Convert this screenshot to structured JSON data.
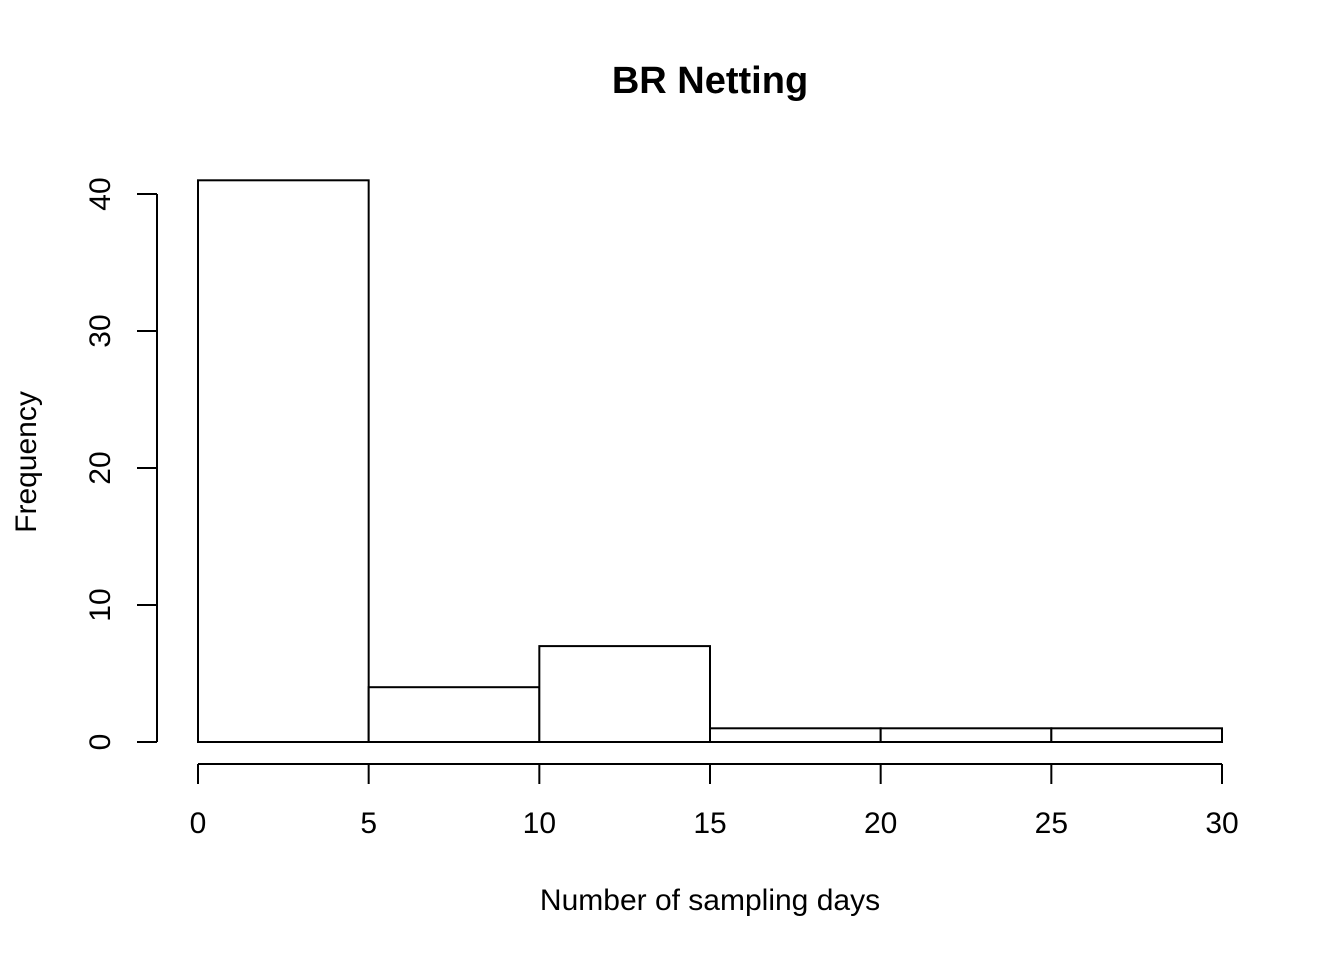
{
  "chart_data": {
    "type": "bar",
    "title": "BR Netting",
    "xlabel": "Number of sampling days",
    "ylabel": "Frequency",
    "bins": [
      [
        0,
        5
      ],
      [
        5,
        10
      ],
      [
        10,
        15
      ],
      [
        15,
        20
      ],
      [
        20,
        25
      ],
      [
        25,
        30
      ]
    ],
    "values": [
      41,
      4,
      7,
      1,
      1,
      1
    ],
    "xlim": [
      0,
      30
    ],
    "ylim": [
      0,
      40
    ],
    "xticks": [
      0,
      5,
      10,
      15,
      20,
      25,
      30
    ],
    "yticks": [
      0,
      10,
      20,
      30,
      40
    ],
    "grid": false,
    "colors": {
      "fill": "#ffffff",
      "stroke": "#000000"
    }
  }
}
